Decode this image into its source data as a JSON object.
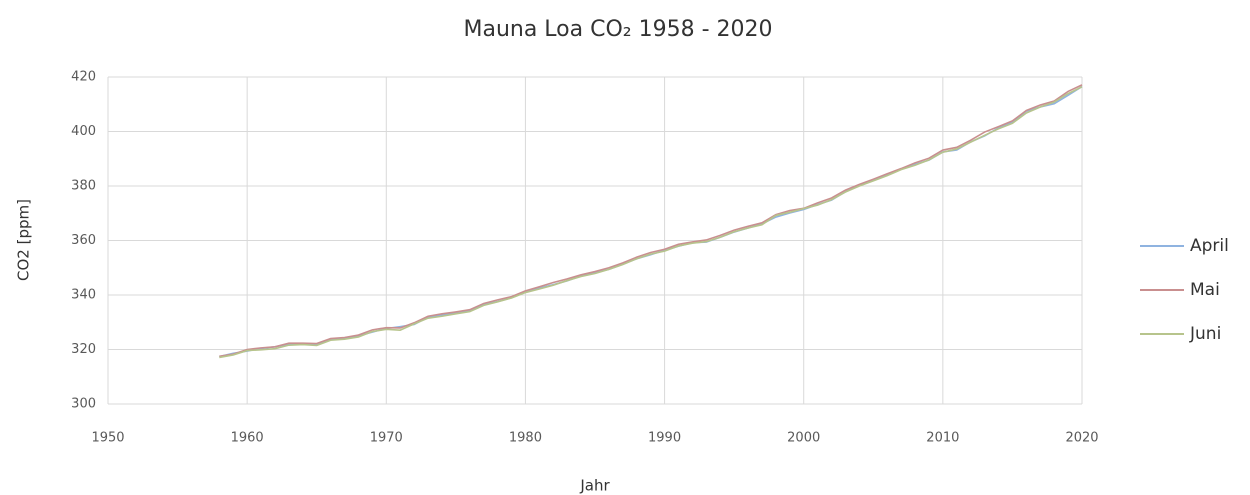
{
  "chart_data": {
    "type": "line",
    "title": "Mauna Loa CO₂ 1958 - 2020",
    "x_label": "Jahr",
    "y_label": "CO2 [ppm]",
    "x": [
      1958,
      1959,
      1960,
      1961,
      1962,
      1963,
      1964,
      1965,
      1966,
      1967,
      1968,
      1969,
      1970,
      1971,
      1972,
      1973,
      1974,
      1975,
      1976,
      1977,
      1978,
      1979,
      1980,
      1981,
      1982,
      1983,
      1984,
      1985,
      1986,
      1987,
      1988,
      1989,
      1990,
      1991,
      1992,
      1993,
      1994,
      1995,
      1996,
      1997,
      1998,
      1999,
      2000,
      2001,
      2002,
      2003,
      2004,
      2005,
      2006,
      2007,
      2008,
      2009,
      2010,
      2011,
      2012,
      2013,
      2014,
      2015,
      2016,
      2017,
      2018,
      2019,
      2020
    ],
    "series": [
      {
        "name": "April",
        "color": "#8fb3e0",
        "values": [
          317.4,
          318.6,
          319.4,
          320.4,
          321.0,
          322.0,
          322.0,
          322.0,
          323.7,
          324.3,
          325.0,
          326.4,
          327.7,
          328.4,
          329.2,
          331.8,
          332.6,
          333.4,
          334.2,
          336.6,
          337.6,
          339.0,
          341.0,
          342.5,
          343.8,
          345.2,
          347.0,
          348.3,
          349.4,
          351.3,
          353.3,
          354.8,
          356.4,
          357.9,
          359.2,
          359.4,
          361.2,
          363.1,
          364.6,
          366.1,
          368.6,
          370.1,
          371.4,
          373.2,
          374.8,
          377.9,
          380.2,
          382.0,
          384.3,
          386.2,
          388.0,
          389.5,
          392.5,
          393.2,
          396.2,
          398.4,
          401.3,
          403.4,
          407.5,
          409.0,
          410.2,
          413.3,
          416.5
        ]
      },
      {
        "name": "Mai",
        "color": "#c98f8f",
        "values": [
          317.5,
          318.3,
          320.0,
          320.6,
          321.0,
          322.3,
          322.3,
          322.2,
          324.0,
          324.4,
          325.3,
          327.2,
          328.0,
          327.9,
          329.8,
          332.2,
          333.1,
          333.8,
          334.6,
          336.9,
          338.2,
          339.4,
          341.5,
          343.0,
          344.6,
          345.9,
          347.4,
          348.6,
          350.0,
          351.8,
          353.9,
          355.6,
          356.8,
          358.6,
          359.5,
          360.2,
          361.9,
          363.8,
          365.2,
          366.5,
          369.5,
          371.0,
          371.8,
          373.8,
          375.6,
          378.5,
          380.6,
          382.5,
          384.5,
          386.4,
          388.5,
          390.2,
          393.2,
          394.2,
          396.8,
          399.8,
          401.8,
          403.9,
          407.7,
          409.7,
          411.2,
          414.7,
          417.1
        ]
      },
      {
        "name": "Juni",
        "color": "#b7c48c",
        "values": [
          317.1,
          318.0,
          319.6,
          319.9,
          320.3,
          321.6,
          321.8,
          321.5,
          323.4,
          323.8,
          324.6,
          326.6,
          327.4,
          327.1,
          329.4,
          331.5,
          332.2,
          333.1,
          333.9,
          336.2,
          337.5,
          338.9,
          340.9,
          342.2,
          343.6,
          345.3,
          346.8,
          347.9,
          349.4,
          351.2,
          353.3,
          355.0,
          356.1,
          358.0,
          359.0,
          359.6,
          361.2,
          363.2,
          364.6,
          365.8,
          369.2,
          370.4,
          371.7,
          373.0,
          375.0,
          377.8,
          380.0,
          381.9,
          383.8,
          386.0,
          387.6,
          389.6,
          392.4,
          393.6,
          396.1,
          398.6,
          401.0,
          403.0,
          406.8,
          409.0,
          410.8,
          413.9,
          416.4
        ]
      }
    ],
    "xlim": [
      1950,
      2020
    ],
    "xticks": [
      1950,
      1960,
      1970,
      1980,
      1990,
      2000,
      2010,
      2020
    ],
    "ylim": [
      300,
      420
    ],
    "yticks": [
      300,
      320,
      340,
      360,
      380,
      400,
      420
    ],
    "grid": true,
    "legend": "right"
  }
}
